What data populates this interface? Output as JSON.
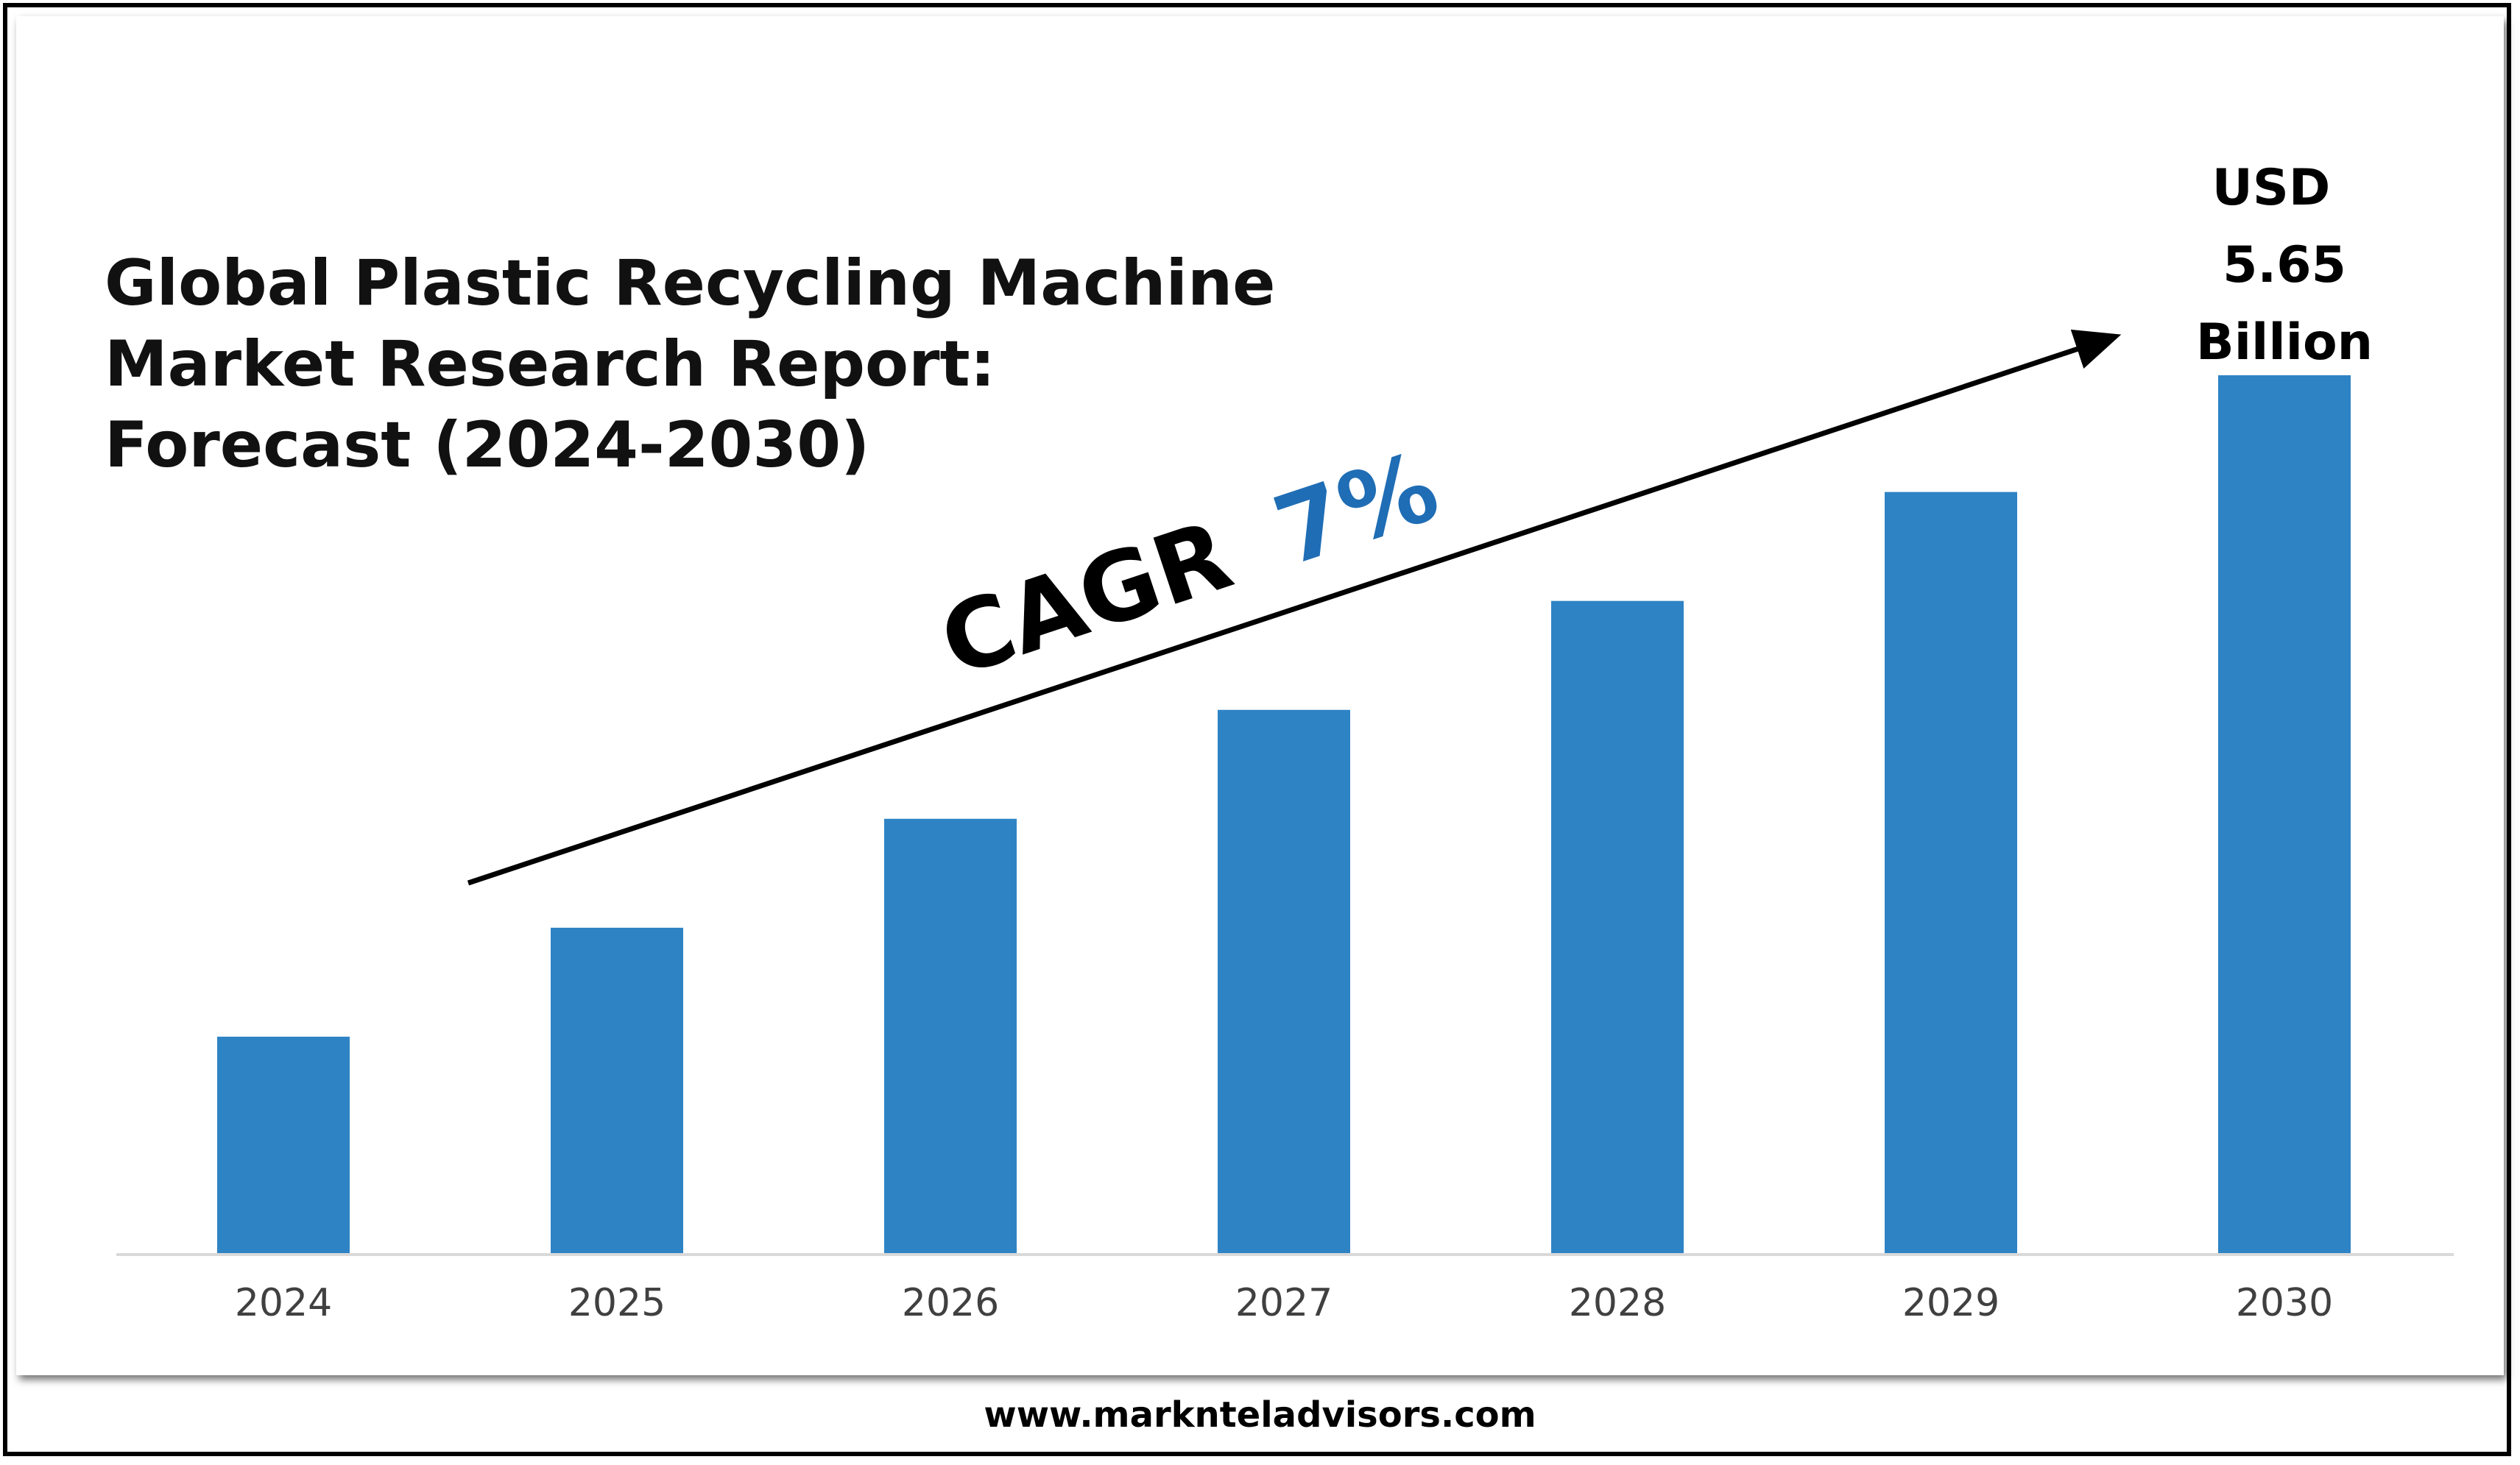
{
  "title_lines": [
    "Global Plastic Recycling Machine",
    "Market Research Report:",
    "Forecast (2024-2030)"
  ],
  "cagr": {
    "label": "CAGR",
    "value": "7%",
    "value_color": "#1F6DB5"
  },
  "footer": {
    "website": "www.marknteladvisors.com"
  },
  "colors": {
    "bar": "#2E83C5",
    "axis": "#D9D9D9",
    "arrow": "#000000"
  },
  "chart_data": {
    "type": "bar",
    "categories": [
      "2024",
      "2025",
      "2026",
      "2027",
      "2028",
      "2029",
      "2030"
    ],
    "values": [
      1.4,
      2.1,
      2.8,
      3.5,
      4.2,
      4.9,
      5.65
    ],
    "value_labels": [
      "",
      "",
      "",
      "",
      "",
      "",
      "USD 5.65 Billion"
    ],
    "last_value_label_lines": [
      "USD",
      "5.65",
      "Billion"
    ],
    "ylim": [
      0,
      5.65
    ],
    "unit": "USD Billion",
    "grid": false,
    "legend": "none",
    "title": "",
    "xlabel": "",
    "ylabel": ""
  }
}
